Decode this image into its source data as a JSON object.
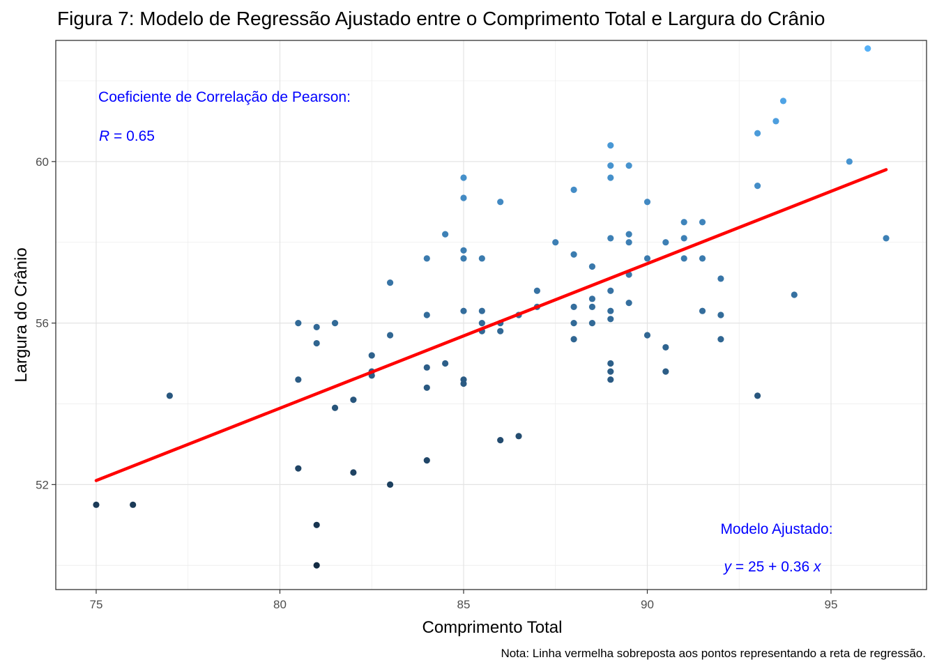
{
  "chart_data": {
    "type": "scatter",
    "title": "Figura 7: Modelo de Regressão Ajustado entre o Comprimento Total e Largura do Crânio",
    "xlabel": "Comprimento Total",
    "ylabel": "Largura do Crânio",
    "xlim": [
      73.9,
      97.6
    ],
    "ylim": [
      49.4,
      63.0
    ],
    "x_ticks": [
      75,
      80,
      85,
      90,
      95
    ],
    "y_ticks": [
      52,
      56,
      60
    ],
    "x_tick_labels": [
      "75",
      "80",
      "85",
      "90",
      "95"
    ],
    "y_tick_labels": [
      "52",
      "56",
      "60"
    ],
    "grid": true,
    "legend": "none",
    "color_scale": {
      "low": "#132B43",
      "high": "#56B1F7",
      "mapped_to": "Largura do Crânio"
    },
    "points": [
      {
        "x": 75,
        "y": 51.5
      },
      {
        "x": 76,
        "y": 51.5
      },
      {
        "x": 77,
        "y": 54.2
      },
      {
        "x": 80.5,
        "y": 56.0
      },
      {
        "x": 80.5,
        "y": 54.6
      },
      {
        "x": 80.5,
        "y": 52.4
      },
      {
        "x": 81,
        "y": 55.9
      },
      {
        "x": 81,
        "y": 55.5
      },
      {
        "x": 81,
        "y": 51.0
      },
      {
        "x": 81,
        "y": 50.0
      },
      {
        "x": 81.5,
        "y": 56.0
      },
      {
        "x": 81.5,
        "y": 53.9
      },
      {
        "x": 82,
        "y": 54.1
      },
      {
        "x": 82,
        "y": 52.3
      },
      {
        "x": 82.5,
        "y": 55.2
      },
      {
        "x": 82.5,
        "y": 54.8
      },
      {
        "x": 82.5,
        "y": 54.7
      },
      {
        "x": 83,
        "y": 57.0
      },
      {
        "x": 83,
        "y": 55.7
      },
      {
        "x": 83,
        "y": 52.0
      },
      {
        "x": 84,
        "y": 57.6
      },
      {
        "x": 84,
        "y": 56.2
      },
      {
        "x": 84,
        "y": 54.9
      },
      {
        "x": 84,
        "y": 54.4
      },
      {
        "x": 84,
        "y": 52.6
      },
      {
        "x": 84.5,
        "y": 58.2
      },
      {
        "x": 84.5,
        "y": 55.0
      },
      {
        "x": 85,
        "y": 59.6
      },
      {
        "x": 85,
        "y": 59.1
      },
      {
        "x": 85,
        "y": 57.8
      },
      {
        "x": 85,
        "y": 57.6
      },
      {
        "x": 85,
        "y": 56.3
      },
      {
        "x": 85,
        "y": 54.6
      },
      {
        "x": 85,
        "y": 54.5
      },
      {
        "x": 85.5,
        "y": 57.6
      },
      {
        "x": 85.5,
        "y": 56.3
      },
      {
        "x": 85.5,
        "y": 56.0
      },
      {
        "x": 85.5,
        "y": 55.8
      },
      {
        "x": 86,
        "y": 59.0
      },
      {
        "x": 86,
        "y": 56.0
      },
      {
        "x": 86,
        "y": 55.8
      },
      {
        "x": 86,
        "y": 53.1
      },
      {
        "x": 86.5,
        "y": 56.2
      },
      {
        "x": 86.5,
        "y": 53.2
      },
      {
        "x": 87,
        "y": 56.8
      },
      {
        "x": 87,
        "y": 56.4
      },
      {
        "x": 87.5,
        "y": 58.0
      },
      {
        "x": 88,
        "y": 59.3
      },
      {
        "x": 88,
        "y": 57.7
      },
      {
        "x": 88,
        "y": 56.4
      },
      {
        "x": 88,
        "y": 56.0
      },
      {
        "x": 88,
        "y": 55.6
      },
      {
        "x": 88.5,
        "y": 57.4
      },
      {
        "x": 88.5,
        "y": 56.6
      },
      {
        "x": 88.5,
        "y": 56.4
      },
      {
        "x": 88.5,
        "y": 56.0
      },
      {
        "x": 89,
        "y": 60.4
      },
      {
        "x": 89,
        "y": 59.9
      },
      {
        "x": 89,
        "y": 59.6
      },
      {
        "x": 89,
        "y": 58.1
      },
      {
        "x": 89,
        "y": 56.8
      },
      {
        "x": 89,
        "y": 56.3
      },
      {
        "x": 89,
        "y": 56.1
      },
      {
        "x": 89,
        "y": 55.0
      },
      {
        "x": 89,
        "y": 54.8
      },
      {
        "x": 89,
        "y": 54.6
      },
      {
        "x": 89.5,
        "y": 59.9
      },
      {
        "x": 89.5,
        "y": 58.2
      },
      {
        "x": 89.5,
        "y": 58.0
      },
      {
        "x": 89.5,
        "y": 57.2
      },
      {
        "x": 89.5,
        "y": 56.5
      },
      {
        "x": 90,
        "y": 59.0
      },
      {
        "x": 90,
        "y": 57.6
      },
      {
        "x": 90,
        "y": 55.7
      },
      {
        "x": 90.5,
        "y": 58.0
      },
      {
        "x": 90.5,
        "y": 55.4
      },
      {
        "x": 90.5,
        "y": 54.8
      },
      {
        "x": 91,
        "y": 58.5
      },
      {
        "x": 91,
        "y": 58.1
      },
      {
        "x": 91,
        "y": 57.6
      },
      {
        "x": 91.5,
        "y": 58.5
      },
      {
        "x": 91.5,
        "y": 57.6
      },
      {
        "x": 91.5,
        "y": 56.3
      },
      {
        "x": 92,
        "y": 57.1
      },
      {
        "x": 92,
        "y": 56.2
      },
      {
        "x": 92,
        "y": 55.6
      },
      {
        "x": 93,
        "y": 60.7
      },
      {
        "x": 93,
        "y": 59.4
      },
      {
        "x": 93,
        "y": 54.2
      },
      {
        "x": 93.5,
        "y": 61.0
      },
      {
        "x": 93.7,
        "y": 61.5
      },
      {
        "x": 94,
        "y": 56.7
      },
      {
        "x": 95.5,
        "y": 60.0
      },
      {
        "x": 96,
        "y": 62.8
      },
      {
        "x": 96.5,
        "y": 58.1
      }
    ],
    "regression_line": {
      "x": [
        75,
        96.5
      ],
      "y": [
        52.1,
        59.8
      ],
      "color": "#ff0000"
    },
    "annotations": {
      "correlation_label": "Coeficiente de Correlação de Pearson:",
      "correlation_symbol": "R",
      "correlation_value": " = 0.65",
      "model_label": "Modelo Ajustado:",
      "model_y": "y",
      "model_eq": " = 25 + 0.36 ",
      "model_x": "x",
      "color": "#0000ff"
    },
    "caption": "Nota: Linha vermelha sobreposta aos pontos representando a reta de regressão."
  }
}
